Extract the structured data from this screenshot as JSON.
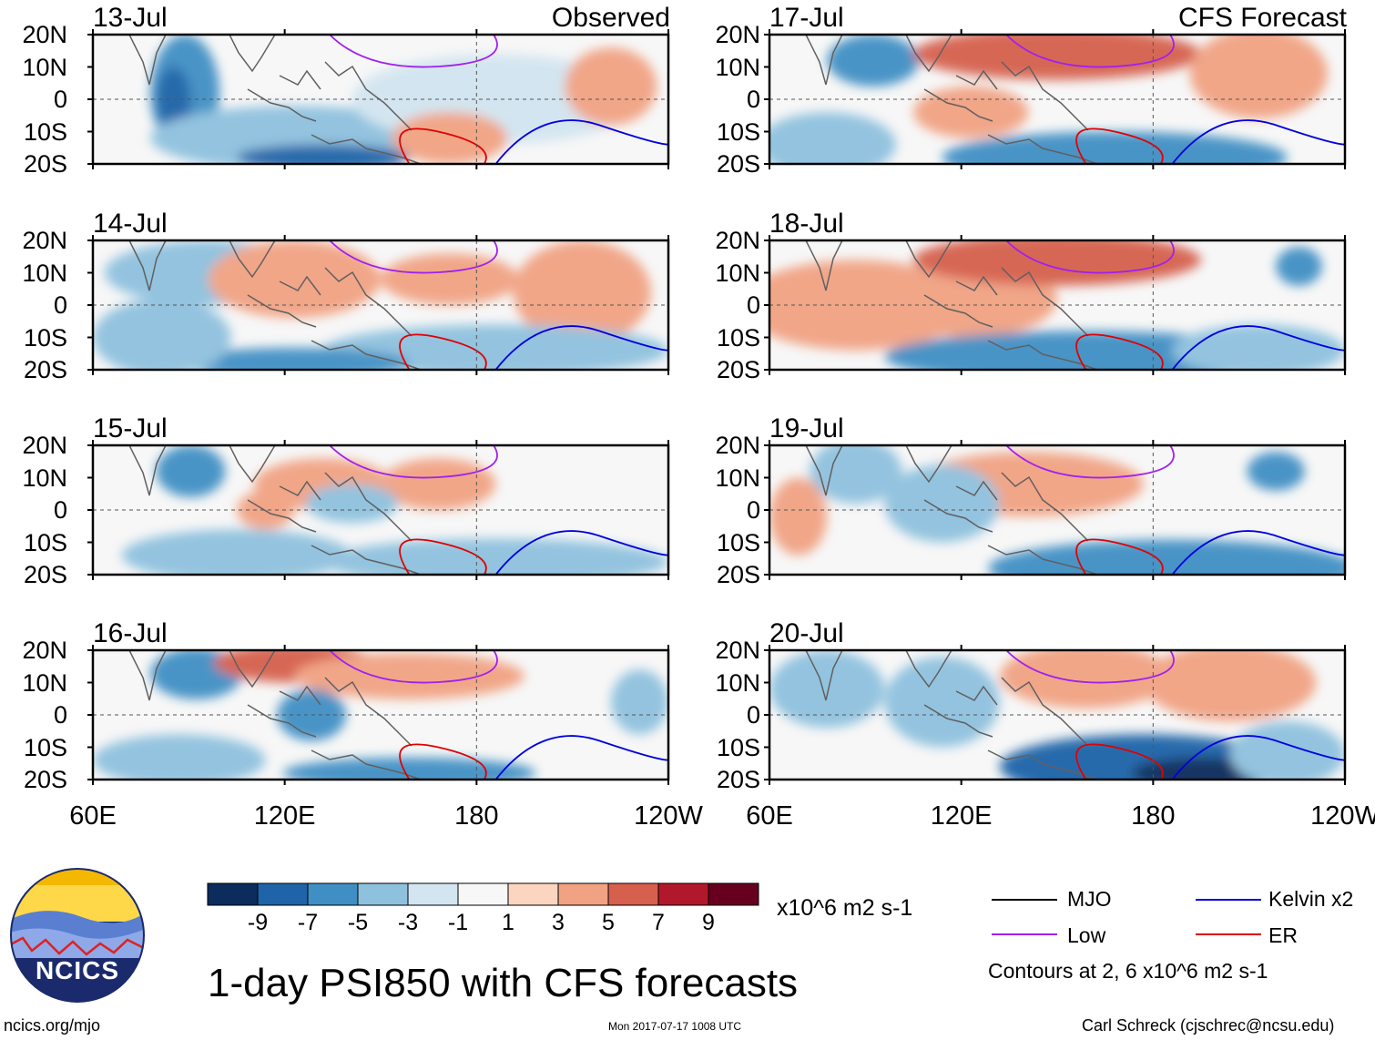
{
  "title": "1-day PSI850 with CFS forecasts",
  "units": "x10^6 m2 s-1",
  "footer": {
    "site": "ncics.org/mjo",
    "timestamp": "Mon 2017-07-17 1008 UTC",
    "author": "Carl Schreck (cjschrec@ncsu.edu)"
  },
  "logo": {
    "text": "NCICS"
  },
  "contour_note": "Contours at 2, 6 x10^6 m2 s-1",
  "legend": [
    {
      "label": "MJO",
      "color": "#000000"
    },
    {
      "label": "Kelvin x2",
      "color": "#0000e0"
    },
    {
      "label": "Low",
      "color": "#a020f0"
    },
    {
      "label": "ER",
      "color": "#e00000"
    }
  ],
  "colorbar": {
    "colors": [
      "#0b2c5c",
      "#1f63a8",
      "#3f8fc4",
      "#8ec1de",
      "#d2e5f0",
      "#f7f7f7",
      "#fbd5c0",
      "#f1a283",
      "#d6604d",
      "#b2182b",
      "#67001f"
    ],
    "labels": [
      "-9",
      "-7",
      "-5",
      "-3",
      "-1",
      "1",
      "3",
      "5",
      "7",
      "9"
    ]
  },
  "chart_data": {
    "type": "heatmap",
    "variable": "850-hPa streamfunction anomaly",
    "x_ticks": [
      "60E",
      "120E",
      "180",
      "120W"
    ],
    "y_ticks": [
      "20N",
      "10N",
      "0",
      "10S",
      "20S"
    ],
    "xlim": [
      60,
      240
    ],
    "ylim": [
      -20,
      20
    ],
    "columns": [
      {
        "label": "Observed",
        "dates": [
          "13-Jul",
          "14-Jul",
          "15-Jul",
          "16-Jul"
        ]
      },
      {
        "label": "CFS Forecast",
        "dates": [
          "17-Jul",
          "18-Jul",
          "19-Jul",
          "20-Jul"
        ]
      }
    ]
  }
}
